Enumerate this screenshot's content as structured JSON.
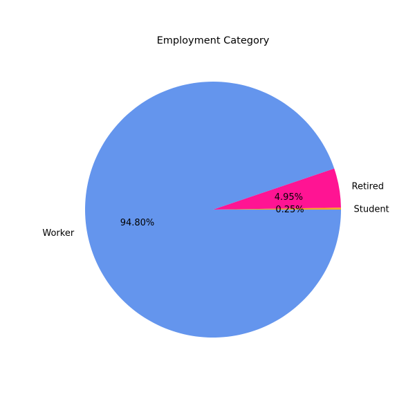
{
  "chart_data": {
    "type": "pie",
    "title": "Employment Category",
    "slices": [
      {
        "label": "Student",
        "value": 0.25,
        "pct_label": "0.25%",
        "color": "#f5a623"
      },
      {
        "label": "Retired",
        "value": 4.95,
        "pct_label": "4.95%",
        "color": "#ff1493"
      },
      {
        "label": "Worker",
        "value": 94.8,
        "pct_label": "94.80%",
        "color": "#6495ed"
      }
    ],
    "start_angle": "0 degrees (3 o'clock), counterclockwise",
    "legend": "none"
  }
}
